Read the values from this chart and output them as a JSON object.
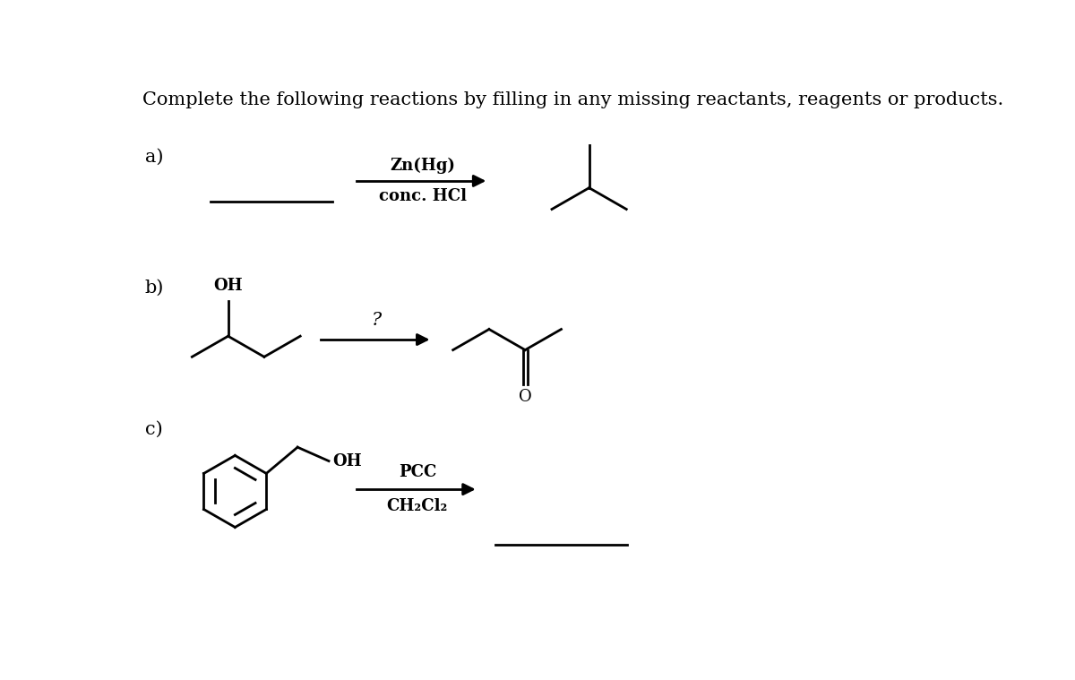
{
  "title": "Complete the following reactions by filling in any missing reactants, reagents or products.",
  "bg_color": "#ffffff",
  "text_color": "#000000",
  "label_a": "a)",
  "label_b": "b)",
  "label_c": "c)",
  "reagent_a_line1": "Zn(Hg)",
  "reagent_a_line2": "conc. HCl",
  "reagent_b": "?",
  "reagent_c_line1": "PCC",
  "reagent_c_line2": "CH₂Cl₂",
  "oh_label": "OH",
  "o_label": "O",
  "title_fontsize": 15,
  "label_fontsize": 15,
  "text_fontsize": 13,
  "lw": 2.0,
  "fig_width": 12.0,
  "fig_height": 7.59,
  "dpi": 100
}
